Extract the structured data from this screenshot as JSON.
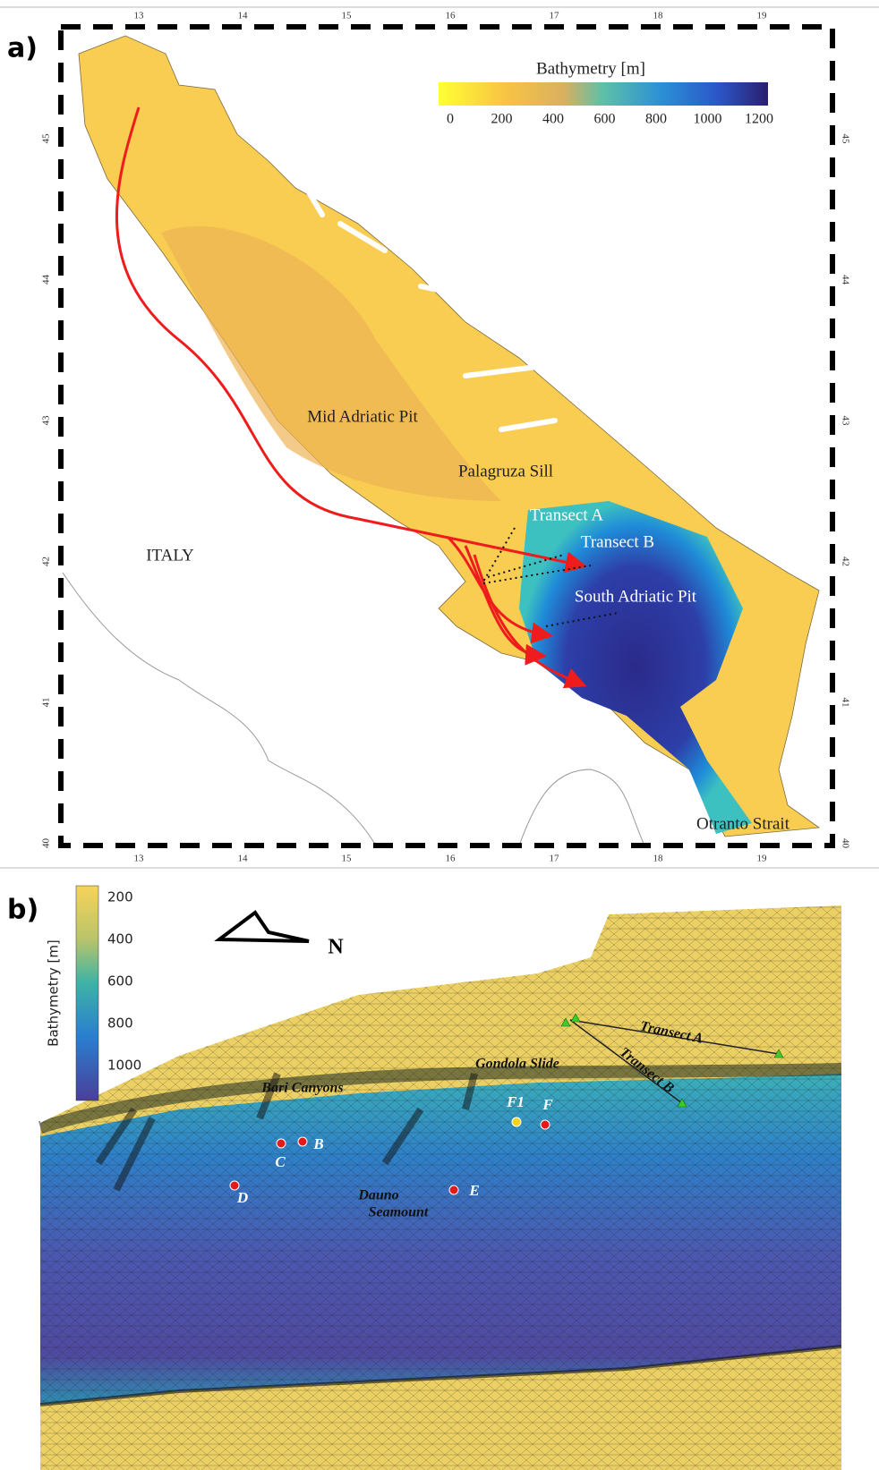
{
  "panel_a": {
    "label": "a)",
    "longitude_ticks": [
      13,
      14,
      15,
      16,
      17,
      18,
      19
    ],
    "latitude_ticks": [
      45,
      44,
      43,
      42,
      41,
      40
    ],
    "colorbar": {
      "title": "Bathymetry [m]",
      "ticks": [
        0,
        200,
        400,
        600,
        800,
        1000,
        1200
      ]
    },
    "labels": [
      "Mid Adriatic Pit",
      "Palagruza Sill",
      "Transect A",
      "Transect B",
      "South Adriatic Pit",
      "ITALY",
      "Otranto Strait"
    ]
  },
  "panel_b": {
    "label": "b)",
    "north": "N",
    "colorbar": {
      "title": "Bathymetry [m]",
      "ticks": [
        200,
        400,
        600,
        800,
        1000
      ]
    },
    "labels": [
      "Transect A",
      "Transect B",
      "Gondola Slide",
      "Bari Canyons",
      "Dauno",
      "Seamount"
    ],
    "points": [
      "F1",
      "F",
      "C",
      "B",
      "D",
      "E"
    ]
  }
}
